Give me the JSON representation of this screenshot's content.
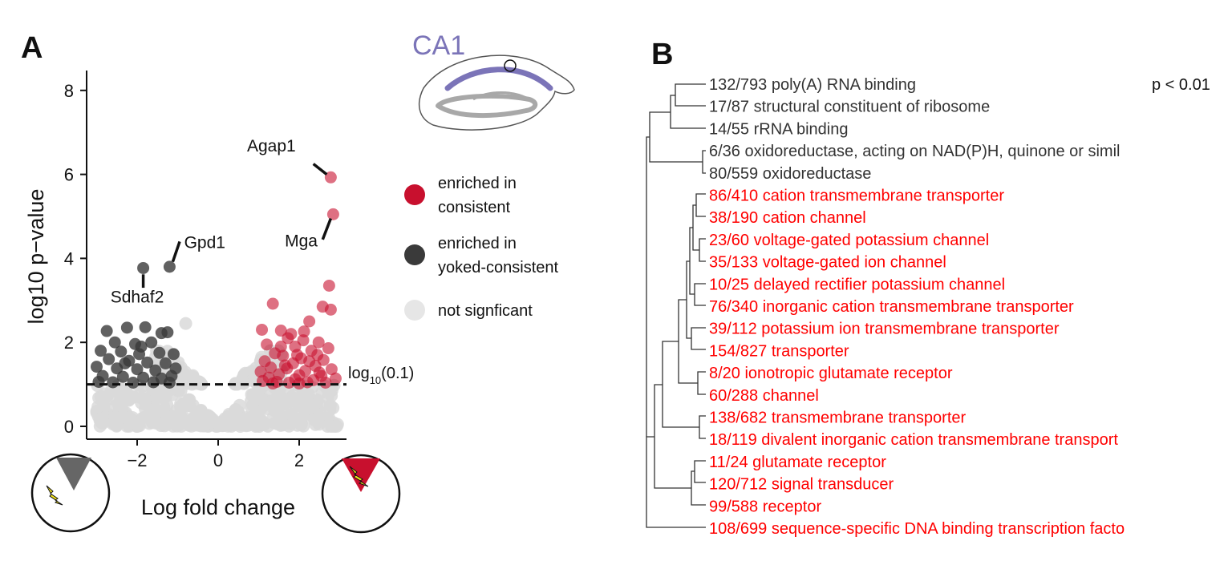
{
  "colors": {
    "enriched_consistent": "#c8102e",
    "enriched_yoked": "#3a3a3a",
    "not_significant": "#d9d9d9",
    "go_red": "#ff0000",
    "go_dark": "#333333",
    "ca1_purple": "#7b74b8",
    "lightning": "#f2e21b"
  },
  "panel_a": {
    "label": "A",
    "region": "CA1",
    "threshold_label": "log",
    "threshold_sub": "10",
    "threshold_value": "(0.1)",
    "legend": [
      {
        "label_line1": "enriched in",
        "label_line2": "consistent",
        "color": "#c8102e"
      },
      {
        "label_line1": "enriched in",
        "label_line2": "yoked-consistent",
        "color": "#3a3a3a"
      },
      {
        "label_line1": "not signficant",
        "label_line2": "",
        "color": "#e6e6e6"
      }
    ]
  },
  "chart_data": {
    "type": "scatter",
    "title": "",
    "xlabel": "Log fold change",
    "ylabel": "log10 p−value",
    "xlim": [
      -3.2,
      3.2
    ],
    "ylim": [
      -0.1,
      8.4
    ],
    "xticks": [
      -2,
      0,
      2
    ],
    "yticks": [
      0,
      2,
      4,
      6,
      8
    ],
    "xtick_labels": [
      "−2",
      "0",
      "2"
    ],
    "ytick_labels": [
      "0",
      "2",
      "4",
      "6",
      "8"
    ],
    "threshold_y": 1.0,
    "series": [
      {
        "name": "enriched in consistent",
        "color": "#c8102e",
        "points": [
          [
            2.78,
            5.93
          ],
          [
            2.84,
            5.05
          ],
          [
            2.74,
            3.35
          ],
          [
            1.35,
            2.92
          ],
          [
            2.58,
            2.85
          ],
          [
            2.78,
            2.78
          ],
          [
            2.25,
            2.5
          ],
          [
            1.08,
            2.3
          ],
          [
            1.55,
            2.28
          ],
          [
            2.12,
            2.26
          ],
          [
            1.72,
            2.1
          ],
          [
            2.48,
            2.0
          ],
          [
            1.2,
            1.95
          ],
          [
            1.9,
            1.9
          ],
          [
            2.3,
            1.8
          ],
          [
            2.72,
            1.86
          ],
          [
            1.4,
            1.74
          ],
          [
            1.6,
            1.68
          ],
          [
            2.05,
            1.62
          ],
          [
            2.6,
            1.58
          ],
          [
            1.15,
            1.55
          ],
          [
            1.85,
            1.5
          ],
          [
            2.4,
            1.44
          ],
          [
            1.3,
            1.4
          ],
          [
            1.7,
            1.38
          ],
          [
            2.15,
            1.32
          ],
          [
            2.8,
            1.36
          ],
          [
            1.05,
            1.3
          ],
          [
            1.5,
            1.24
          ],
          [
            2.0,
            1.22
          ],
          [
            2.55,
            1.2
          ],
          [
            1.25,
            1.16
          ],
          [
            1.9,
            1.12
          ],
          [
            2.35,
            1.1
          ],
          [
            2.9,
            1.14
          ],
          [
            1.45,
            1.06
          ],
          [
            1.75,
            1.04
          ],
          [
            2.2,
            1.05
          ],
          [
            2.65,
            1.04
          ],
          [
            1.1,
            1.08
          ],
          [
            1.35,
            1.02
          ],
          [
            2.0,
            1.02
          ],
          [
            2.5,
            1.28
          ],
          [
            1.65,
            1.45
          ],
          [
            2.25,
            1.55
          ],
          [
            1.95,
            1.7
          ],
          [
            1.55,
            1.9
          ],
          [
            2.1,
            2.05
          ],
          [
            1.8,
            2.2
          ],
          [
            2.45,
            1.7
          ]
        ]
      },
      {
        "name": "enriched in yoked-consistent",
        "color": "#3a3a3a",
        "points": [
          [
            -1.2,
            3.8
          ],
          [
            -1.85,
            3.77
          ],
          [
            -1.8,
            2.36
          ],
          [
            -2.25,
            2.35
          ],
          [
            -2.75,
            2.27
          ],
          [
            -1.25,
            2.24
          ],
          [
            -1.4,
            2.22
          ],
          [
            -2.55,
            2.0
          ],
          [
            -2.05,
            1.96
          ],
          [
            -1.65,
            2.0
          ],
          [
            -2.9,
            1.8
          ],
          [
            -2.4,
            1.78
          ],
          [
            -1.95,
            1.72
          ],
          [
            -1.45,
            1.75
          ],
          [
            -1.1,
            1.72
          ],
          [
            -2.7,
            1.6
          ],
          [
            -2.2,
            1.56
          ],
          [
            -1.75,
            1.52
          ],
          [
            -1.3,
            1.5
          ],
          [
            -3.0,
            1.42
          ],
          [
            -2.5,
            1.38
          ],
          [
            -2.0,
            1.36
          ],
          [
            -1.55,
            1.33
          ],
          [
            -1.05,
            1.38
          ],
          [
            -2.85,
            1.2
          ],
          [
            -2.35,
            1.18
          ],
          [
            -1.85,
            1.16
          ],
          [
            -1.4,
            1.14
          ],
          [
            -1.15,
            1.2
          ],
          [
            -2.95,
            1.06
          ],
          [
            -2.6,
            1.05
          ],
          [
            -2.1,
            1.04
          ],
          [
            -1.6,
            1.05
          ],
          [
            -1.2,
            1.04
          ],
          [
            -2.3,
            1.5
          ],
          [
            -1.9,
            1.9
          ]
        ]
      },
      {
        "name": "not signficant",
        "color": "#d9d9d9",
        "points": [
          [
            -0.8,
            2.45
          ],
          [
            -0.3,
            0.05
          ]
        ]
      }
    ],
    "annotations": [
      {
        "gene": "Agap1",
        "x": 2.78,
        "y": 5.93
      },
      {
        "gene": "Mga",
        "x": 2.84,
        "y": 5.05
      },
      {
        "gene": "Gpd1",
        "x": -1.2,
        "y": 3.8
      },
      {
        "gene": "Sdhaf2",
        "x": -1.85,
        "y": 3.77
      }
    ]
  },
  "panel_b": {
    "label": "B",
    "pvalue_label": "p < 0.01",
    "terms": [
      {
        "text": "132/793 poly(A) RNA binding",
        "enriched_up": false
      },
      {
        "text": "17/87 structural constituent of ribosome",
        "enriched_up": false
      },
      {
        "text": "14/55 rRNA binding",
        "enriched_up": false
      },
      {
        "text": "6/36 oxidoreductase, acting on NAD(P)H, quinone or simil",
        "enriched_up": false
      },
      {
        "text": "80/559 oxidoreductase",
        "enriched_up": false
      },
      {
        "text": "86/410 cation transmembrane transporter",
        "enriched_up": true
      },
      {
        "text": "38/190 cation channel",
        "enriched_up": true
      },
      {
        "text": "23/60 voltage-gated potassium channel",
        "enriched_up": true
      },
      {
        "text": "35/133 voltage-gated ion channel",
        "enriched_up": true
      },
      {
        "text": "10/25 delayed rectifier potassium channel",
        "enriched_up": true
      },
      {
        "text": "76/340 inorganic cation transmembrane transporter",
        "enriched_up": true
      },
      {
        "text": "39/112 potassium ion transmembrane transporter",
        "enriched_up": true
      },
      {
        "text": "154/827 transporter",
        "enriched_up": true
      },
      {
        "text": "8/20 ionotropic glutamate receptor",
        "enriched_up": true
      },
      {
        "text": "60/288 channel",
        "enriched_up": true
      },
      {
        "text": "138/682 transmembrane transporter",
        "enriched_up": true
      },
      {
        "text": "18/119 divalent inorganic cation transmembrane transport",
        "enriched_up": true
      },
      {
        "text": "11/24 glutamate receptor",
        "enriched_up": true
      },
      {
        "text": "120/712 signal transducer",
        "enriched_up": true
      },
      {
        "text": "99/588 receptor",
        "enriched_up": true
      },
      {
        "text": "108/699 sequence-specific DNA binding transcription facto",
        "enriched_up": true
      }
    ]
  }
}
